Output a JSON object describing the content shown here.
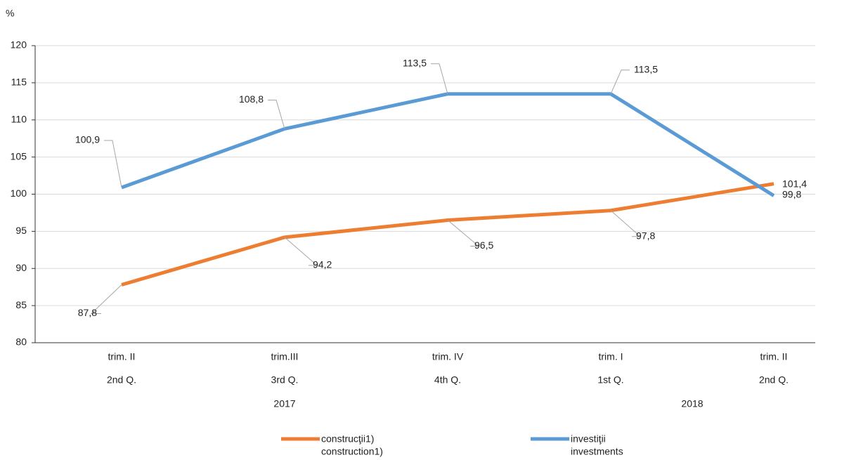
{
  "chart_data": {
    "type": "line",
    "y_label": "%",
    "categories": [
      "trim. II",
      "trim.III",
      "trim. IV",
      "trim. I",
      "trim. II"
    ],
    "category_sublabels": [
      "2nd Q.",
      "3rd Q.",
      "4th Q.",
      "1st Q.",
      "2nd Q."
    ],
    "year_groups": [
      "2017",
      "2018"
    ],
    "ylim": [
      80,
      120
    ],
    "yticks": [
      80,
      85,
      90,
      95,
      100,
      105,
      110,
      115,
      120
    ],
    "grid": true,
    "series": [
      {
        "name": "construcţii1)",
        "name_en": "construction1)",
        "color": "#ed7d31",
        "values": [
          87.8,
          94.2,
          96.5,
          97.8,
          101.4
        ],
        "value_labels": [
          "87,8",
          "94,2",
          "96,5",
          "97,8",
          "101,4"
        ]
      },
      {
        "name": "investiţii",
        "name_en": "investments",
        "color": "#5b9bd5",
        "values": [
          100.9,
          108.8,
          113.5,
          113.5,
          99.8
        ],
        "value_labels": [
          "100,9",
          "108,8",
          "113,5",
          "113,5",
          "99,8"
        ]
      }
    ]
  }
}
